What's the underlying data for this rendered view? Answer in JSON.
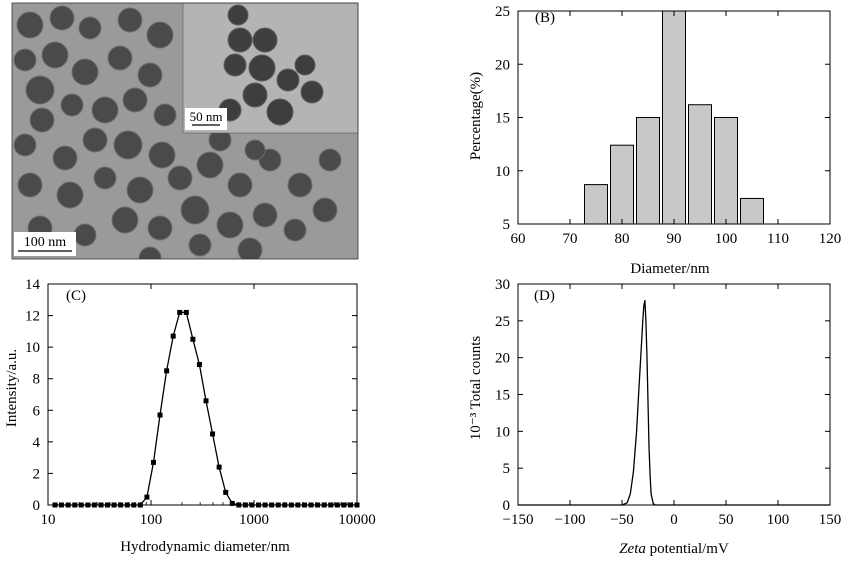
{
  "panels": {
    "a": {
      "scale_main": "100 nm",
      "scale_inset": "50 nm"
    }
  },
  "chart_data": [
    {
      "panel": "(B)",
      "type": "bar",
      "xlabel": "Diameter/nm",
      "ylabel": "Percentage(%)",
      "xlim": [
        60,
        120
      ],
      "ylim": [
        5,
        25
      ],
      "xticks": [
        60,
        70,
        80,
        90,
        100,
        110,
        120
      ],
      "yticks": [
        5,
        10,
        15,
        20,
        25
      ],
      "bin_width": 5,
      "categories": [
        "72.5-77.5",
        "77.5-82.5",
        "82.5-87.5",
        "87.5-92.5",
        "92.5-97.5",
        "97.5-102.5",
        "102.5-107.5"
      ],
      "x": [
        75,
        80,
        85,
        90,
        95,
        100,
        105
      ],
      "values": [
        8.7,
        12.4,
        15.0,
        25.0,
        16.2,
        15.0,
        7.4
      ],
      "color": "#c8c8c8"
    },
    {
      "panel": "(C)",
      "type": "line",
      "xscale": "log",
      "xlabel": "Hydrodynamic diameter/nm",
      "ylabel": "Intensity/a.u.",
      "xlim": [
        10,
        10000
      ],
      "ylim": [
        0,
        14
      ],
      "xticks": [
        10,
        100,
        1000,
        10000
      ],
      "yticks": [
        0,
        2,
        4,
        6,
        8,
        10,
        12,
        14
      ],
      "x": [
        11.7,
        13.5,
        15.7,
        18.2,
        21.0,
        24.4,
        28.2,
        32.7,
        37.8,
        43.8,
        50.7,
        58.8,
        68.1,
        78.8,
        91.3,
        105.7,
        122.4,
        141.8,
        164.2,
        190.1,
        220.2,
        255.0,
        295.3,
        342.0,
        396.1,
        458.7,
        531.2,
        615.1,
        712.4,
        825.0,
        955.4,
        1106.4,
        1281.2,
        1483.8,
        1718.3,
        1989.9,
        2304.4,
        2668.7,
        3090.5,
        3579.0,
        4144.7,
        4799.9,
        5558.6,
        6437.2,
        7454.7,
        8633.1,
        9997.7
      ],
      "y": [
        0,
        0,
        0,
        0,
        0,
        0,
        0,
        0,
        0,
        0,
        0,
        0,
        0,
        0,
        0.5,
        2.7,
        5.7,
        8.5,
        10.7,
        12.2,
        12.2,
        10.5,
        8.9,
        6.6,
        4.5,
        2.4,
        0.8,
        0.1,
        0,
        0,
        0,
        0,
        0,
        0,
        0,
        0,
        0,
        0,
        0,
        0,
        0,
        0,
        0,
        0,
        0,
        0,
        0
      ],
      "marker": "square"
    },
    {
      "panel": "(D)",
      "type": "line",
      "xlabel_italic": "Zeta",
      "xlabel_rest": " potential/mV",
      "ylabel": "10⁻³ Total counts",
      "xlim": [
        -150,
        150
      ],
      "ylim": [
        0,
        30
      ],
      "xticks": [
        -150,
        -100,
        -50,
        0,
        50,
        100,
        150
      ],
      "xtick_labels": [
        "−150",
        "−100",
        "−50",
        "0",
        "50",
        "100",
        "150"
      ],
      "yticks": [
        0,
        5,
        10,
        15,
        20,
        25,
        30
      ],
      "x": [
        -150,
        -50,
        -45,
        -42,
        -39,
        -36,
        -34,
        -32,
        -30,
        -29,
        -28,
        -27,
        -26,
        -25,
        -24,
        -23,
        -22,
        -20,
        -18,
        150
      ],
      "y": [
        0,
        0,
        0.3,
        1.5,
        4.5,
        10,
        15,
        20,
        25,
        27,
        27.8,
        25,
        20,
        14,
        8,
        4,
        1.5,
        0.2,
        0,
        0
      ]
    }
  ]
}
